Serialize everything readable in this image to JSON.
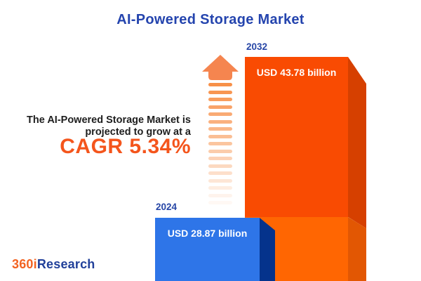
{
  "title": "AI-Powered Storage Market",
  "description": {
    "line1": "The AI-Powered Storage Market is",
    "line2": "projected to grow at a",
    "cagr": "CAGR 5.34%"
  },
  "chart_data": {
    "type": "bar",
    "title": "AI-Powered Storage Market",
    "categories": [
      "2024",
      "2032"
    ],
    "values": [
      28.87,
      43.78
    ],
    "unit": "USD billion",
    "value_labels": [
      "USD 28.87 billion",
      "USD 43.78 billion"
    ],
    "cagr_percent": 5.34,
    "legend": "none",
    "grid": false,
    "style": "3d-extruded-bars, 2024 blue in front, 2032 orange behind with lighter base segment below 2024 level, dashed growth arrow between text and bars"
  },
  "bars": [
    {
      "year": "2024",
      "value_label": "USD 28.87 billion"
    },
    {
      "year": "2032",
      "value_label": "USD 43.78 billion"
    }
  ],
  "arrow": {
    "dash_count": 17,
    "head_color": "#F5854F",
    "dash_color": "#F78C42"
  },
  "logo": {
    "part1": "360i",
    "part2": "Research"
  },
  "colors": {
    "title_blue": "#2444AE",
    "year_label_blue": "#2746A6",
    "body_text": "#1E1E1E",
    "cagr_orange": "#F4551C",
    "bar_2024_front": "#2E75E8",
    "bar_2024_side": "#05338C",
    "bar_2032_front": "#F94B02",
    "bar_2032_side": "#D64000",
    "bar_2032_base_front": "#FF6602",
    "bar_2032_base_side": "#E25703",
    "logo_orange": "#F26322",
    "logo_blue": "#21409A",
    "background": "#FFFFFF"
  }
}
